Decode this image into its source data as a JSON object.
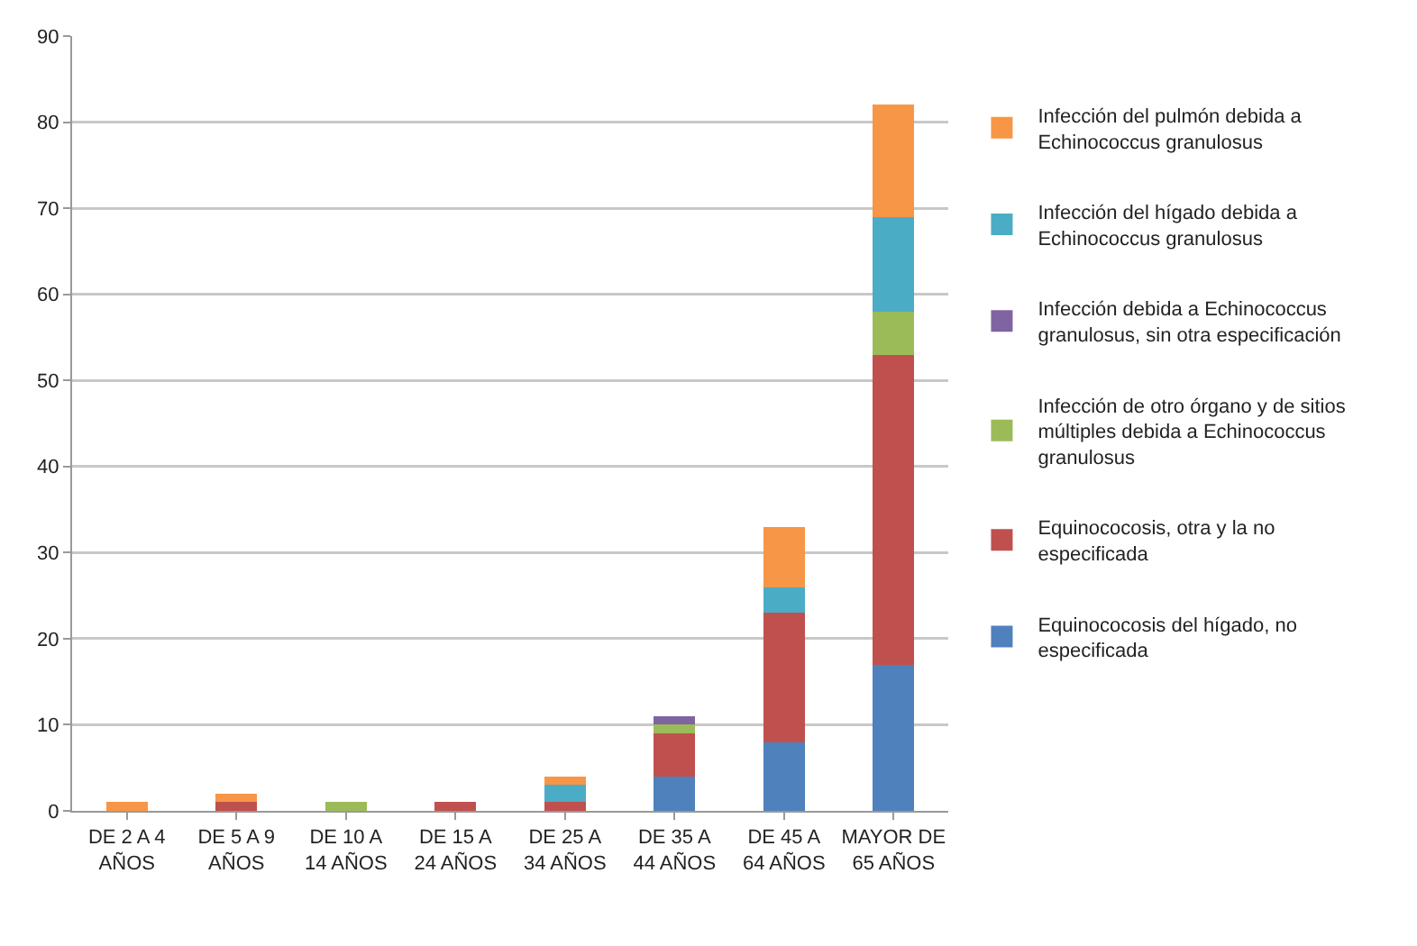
{
  "chart_data": {
    "type": "bar",
    "stacked": true,
    "categories": [
      "DE 2 A 4 AÑOS",
      "DE 5 A 9 AÑOS",
      "DE 10 A 14 AÑOS",
      "DE 15 A 24 AÑOS",
      "DE 25 A 34 AÑOS",
      "DE 35 A 44 AÑOS",
      "DE 45 A 64 AÑOS",
      "MAYOR DE 65 AÑOS"
    ],
    "series": [
      {
        "name": "Equinococosis del hígado, no especificada",
        "color": "#4f81bd",
        "values": [
          0,
          0,
          0,
          0,
          0,
          4,
          8,
          17
        ]
      },
      {
        "name": "Equinococosis, otra y la no especificada",
        "color": "#c0504d",
        "values": [
          0,
          1,
          0,
          1,
          1,
          5,
          15,
          36
        ]
      },
      {
        "name": "Infección de otro órgano y de sitios múltiples debida a Echinococcus granulosus",
        "color": "#9bbb59",
        "values": [
          0,
          0,
          1,
          0,
          0,
          1,
          0,
          5
        ]
      },
      {
        "name": "Infección debida a Echinococcus granulosus, sin otra especificación",
        "color": "#8064a2",
        "values": [
          0,
          0,
          0,
          0,
          0,
          1,
          0,
          0
        ]
      },
      {
        "name": "Infección del hígado debida a Echinococcus granulosus",
        "color": "#4bacc6",
        "values": [
          0,
          0,
          0,
          0,
          2,
          0,
          3,
          11
        ]
      },
      {
        "name": "Infección del pulmón debida a Echinococcus granulosus",
        "color": "#f79646",
        "values": [
          1,
          1,
          0,
          0,
          1,
          0,
          7,
          13
        ]
      }
    ],
    "ylim": [
      0,
      90
    ],
    "yticks": [
      0,
      10,
      20,
      30,
      40,
      50,
      60,
      70,
      80,
      90
    ],
    "grid": "y",
    "legend": "right"
  }
}
